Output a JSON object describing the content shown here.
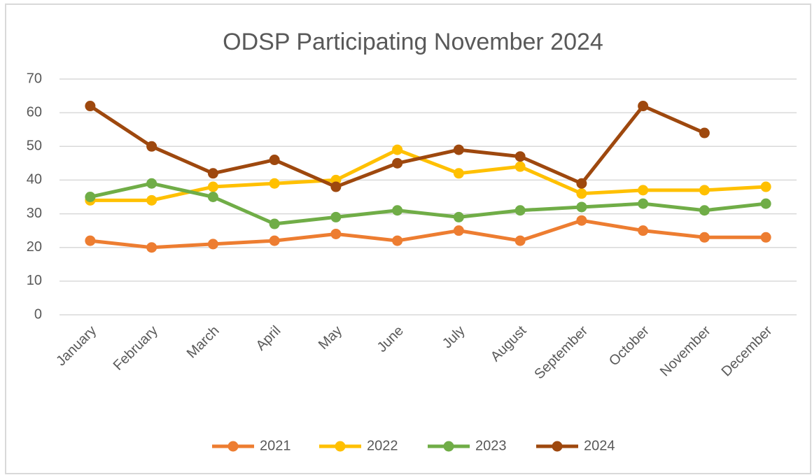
{
  "chart_data": {
    "type": "line",
    "title": "ODSP Participating November 2024",
    "categories": [
      "January",
      "February",
      "March",
      "April",
      "May",
      "June",
      "July",
      "August",
      "September",
      "October",
      "November",
      "December"
    ],
    "series": [
      {
        "name": "2021",
        "color": "#ED7D31",
        "values": [
          22,
          20,
          21,
          22,
          24,
          22,
          25,
          22,
          28,
          25,
          23,
          23
        ]
      },
      {
        "name": "2022",
        "color": "#FFC000",
        "values": [
          34,
          34,
          38,
          39,
          40,
          49,
          42,
          44,
          36,
          37,
          37,
          38
        ]
      },
      {
        "name": "2023",
        "color": "#70AD47",
        "values": [
          35,
          39,
          35,
          27,
          29,
          31,
          29,
          31,
          32,
          33,
          31,
          33
        ]
      },
      {
        "name": "2024",
        "color": "#9E480E",
        "values": [
          62,
          50,
          42,
          46,
          38,
          45,
          49,
          47,
          39,
          62,
          54,
          null
        ]
      }
    ],
    "ylim": [
      0,
      70
    ],
    "yticks": [
      0,
      10,
      20,
      30,
      40,
      50,
      60,
      70
    ],
    "grid": true,
    "legend": "bottom"
  }
}
